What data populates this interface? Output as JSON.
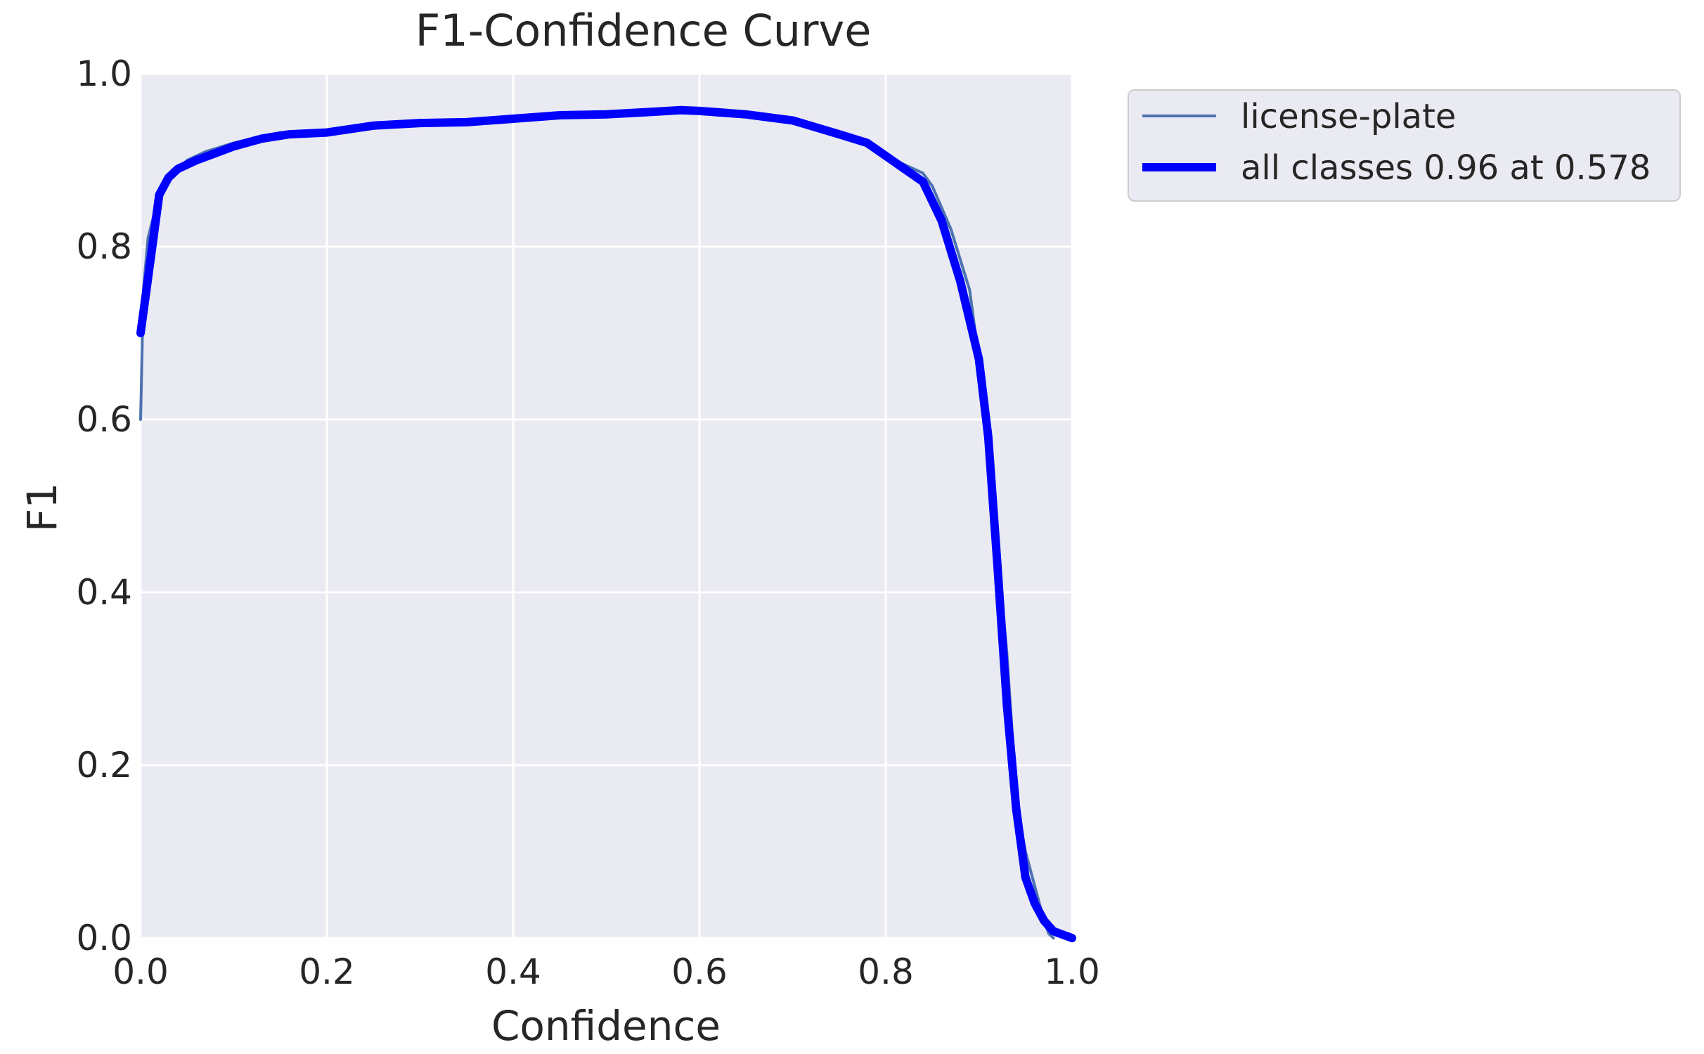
{
  "chart_data": {
    "type": "line",
    "title": "F1-Confidence Curve",
    "xlabel": "Confidence",
    "ylabel": "F1",
    "xlim": [
      0,
      1
    ],
    "ylim": [
      0,
      1
    ],
    "grid": true,
    "legend_placement": "outside-top-right",
    "x_ticks": [
      "0.0",
      "0.2",
      "0.4",
      "0.6",
      "0.8",
      "1.0"
    ],
    "y_ticks": [
      "0.0",
      "0.2",
      "0.4",
      "0.6",
      "0.8",
      "1.0"
    ],
    "colors": {
      "plot_background": "#EAEAF2",
      "grid": "#FFFFFF",
      "license_plate": "#4C72B0",
      "all_classes": "#0000FF"
    },
    "series": [
      {
        "name": "license-plate",
        "x": [
          0.0,
          0.003,
          0.008,
          0.015,
          0.025,
          0.035,
          0.05,
          0.07,
          0.1,
          0.13,
          0.15,
          0.2,
          0.25,
          0.3,
          0.35,
          0.4,
          0.45,
          0.5,
          0.55,
          0.58,
          0.6,
          0.65,
          0.7,
          0.75,
          0.78,
          0.8,
          0.82,
          0.84,
          0.85,
          0.87,
          0.89,
          0.9,
          0.91,
          0.92,
          0.93,
          0.935,
          0.94,
          0.945,
          0.95,
          0.96,
          0.97,
          0.975,
          0.98
        ],
        "y": [
          0.6,
          0.75,
          0.81,
          0.84,
          0.87,
          0.885,
          0.9,
          0.91,
          0.92,
          0.928,
          0.932,
          0.933,
          0.94,
          0.943,
          0.944,
          0.947,
          0.952,
          0.953,
          0.956,
          0.958,
          0.957,
          0.953,
          0.946,
          0.93,
          0.92,
          0.905,
          0.895,
          0.885,
          0.87,
          0.82,
          0.75,
          0.67,
          0.56,
          0.45,
          0.33,
          0.25,
          0.15,
          0.13,
          0.1,
          0.06,
          0.02,
          0.005,
          0.0
        ]
      },
      {
        "name": "all classes 0.96 at 0.578",
        "x": [
          0.0,
          0.01,
          0.02,
          0.03,
          0.04,
          0.06,
          0.08,
          0.1,
          0.13,
          0.16,
          0.2,
          0.25,
          0.3,
          0.35,
          0.4,
          0.45,
          0.5,
          0.55,
          0.58,
          0.6,
          0.65,
          0.7,
          0.75,
          0.78,
          0.8,
          0.82,
          0.84,
          0.86,
          0.88,
          0.9,
          0.91,
          0.92,
          0.93,
          0.94,
          0.95,
          0.96,
          0.97,
          0.98,
          1.0
        ],
        "y": [
          0.7,
          0.78,
          0.86,
          0.88,
          0.89,
          0.9,
          0.908,
          0.916,
          0.925,
          0.93,
          0.932,
          0.94,
          0.943,
          0.944,
          0.948,
          0.952,
          0.953,
          0.956,
          0.958,
          0.957,
          0.953,
          0.946,
          0.93,
          0.92,
          0.905,
          0.89,
          0.875,
          0.83,
          0.76,
          0.67,
          0.58,
          0.43,
          0.27,
          0.15,
          0.07,
          0.04,
          0.02,
          0.008,
          0.0
        ]
      }
    ]
  }
}
